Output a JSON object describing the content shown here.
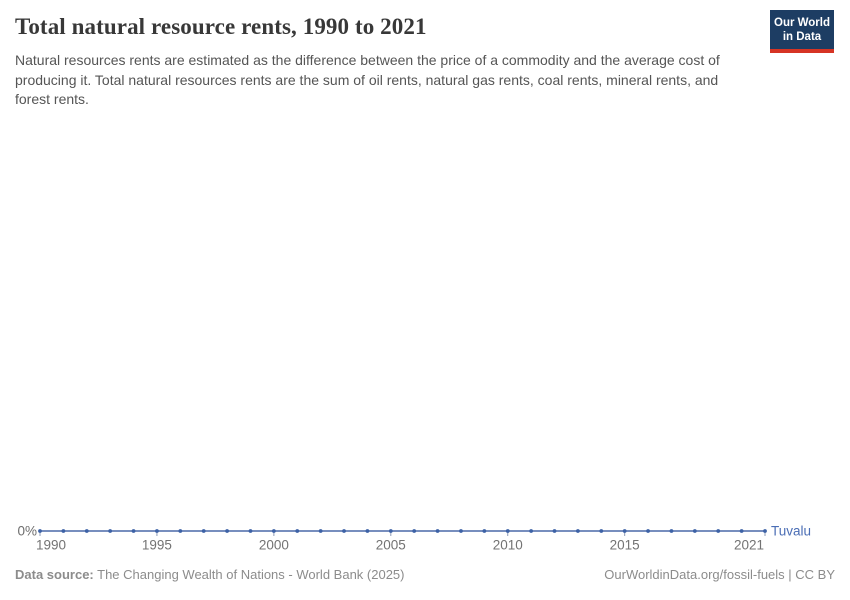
{
  "header": {
    "title": "Total natural resource rents, 1990 to 2021",
    "subtitle": "Natural resources rents are estimated as the difference between the price of a commodity and the average cost of producing it. Total natural resources rents are the sum of oil rents, natural gas rents, coal rents, mineral rents, and forest rents.",
    "logo": {
      "line1": "Our World",
      "line2": "in Data",
      "bg_color": "#1d3d63",
      "accent_color": "#d63424"
    }
  },
  "chart_data": {
    "type": "line",
    "title": "Total natural resource rents, 1990 to 2021",
    "x": [
      1990,
      1991,
      1992,
      1993,
      1994,
      1995,
      1996,
      1997,
      1998,
      1999,
      2000,
      2001,
      2002,
      2003,
      2004,
      2005,
      2006,
      2007,
      2008,
      2009,
      2010,
      2011,
      2012,
      2013,
      2014,
      2015,
      2016,
      2017,
      2018,
      2019,
      2020,
      2021
    ],
    "series": [
      {
        "name": "Tuvalu",
        "values": [
          0,
          0,
          0,
          0,
          0,
          0,
          0,
          0,
          0,
          0,
          0,
          0,
          0,
          0,
          0,
          0,
          0,
          0,
          0,
          0,
          0,
          0,
          0,
          0,
          0,
          0,
          0,
          0,
          0,
          0,
          0,
          0
        ],
        "color": "#4a69a8"
      }
    ],
    "x_ticks": [
      1990,
      1995,
      2000,
      2005,
      2010,
      2015,
      2021
    ],
    "x_tick_labels": [
      "1990",
      "1995",
      "2000",
      "2005",
      "2010",
      "2015",
      "2021"
    ],
    "y_tick_labels": [
      "0%"
    ],
    "ylabel": "",
    "xlabel": "",
    "xlim": [
      1990,
      2021
    ],
    "ylim": [
      0,
      null
    ],
    "grid": false,
    "legend_position": "end-of-line",
    "colors": {
      "line": "#4a69a8",
      "marker": "#3d62a6",
      "entity_label": "#4b6eb5",
      "axis_text": "#737373",
      "y_axis_text": "#6d6d6d",
      "tick": "#8d9bb8"
    }
  },
  "footer": {
    "datasource_label": "Data source:",
    "datasource_value": "The Changing Wealth of Nations - World Bank (2025)",
    "attribution": "OurWorldinData.org/fossil-fuels | CC BY"
  }
}
